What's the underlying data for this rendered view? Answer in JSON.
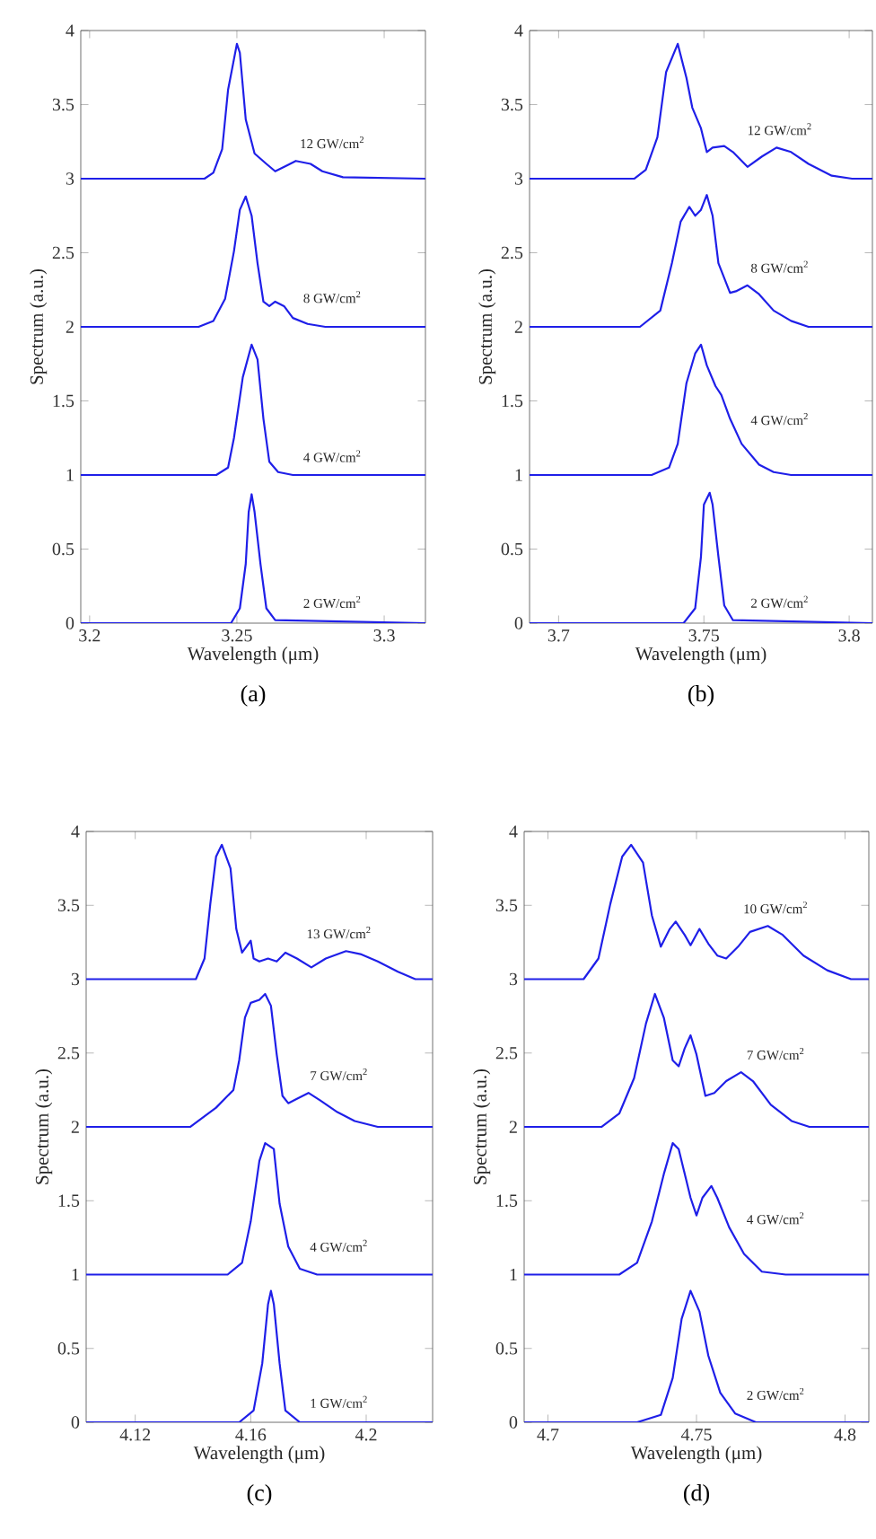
{
  "chart_data": [
    {
      "type": "line",
      "title": "(a)",
      "xlabel": "Wavelength (μm)",
      "ylabel": "Spectrum (a.u.)",
      "xlim": [
        3.197,
        3.314
      ],
      "ylim": [
        0,
        4
      ],
      "xticks": [
        3.2,
        3.25,
        3.3
      ],
      "yticks": [
        0,
        0.5,
        1,
        1.5,
        2,
        2.5,
        3,
        3.5,
        4
      ],
      "series": [
        {
          "name": "12 GW/cm$^{2}$",
          "color": "#1f1fe8",
          "x": [
            3.197,
            3.239,
            3.242,
            3.245,
            3.247,
            3.25,
            3.251,
            3.253,
            3.256,
            3.26,
            3.263,
            3.267,
            3.27,
            3.275,
            3.279,
            3.286,
            3.314
          ],
          "values": [
            3.0,
            3.0,
            3.04,
            3.2,
            3.6,
            3.91,
            3.85,
            3.4,
            3.17,
            3.1,
            3.05,
            3.09,
            3.12,
            3.1,
            3.05,
            3.01,
            3.0
          ]
        },
        {
          "name": "8 GW/cm$^{2}$",
          "color": "#1f1fe8",
          "x": [
            3.197,
            3.237,
            3.242,
            3.246,
            3.249,
            3.251,
            3.253,
            3.255,
            3.257,
            3.259,
            3.261,
            3.263,
            3.266,
            3.269,
            3.274,
            3.28,
            3.314
          ],
          "values": [
            2.0,
            2.0,
            2.04,
            2.19,
            2.51,
            2.79,
            2.88,
            2.75,
            2.43,
            2.17,
            2.14,
            2.17,
            2.14,
            2.06,
            2.02,
            2.0,
            2.0
          ]
        },
        {
          "name": "4 GW/cm$^{2}$",
          "color": "#1f1fe8",
          "x": [
            3.197,
            3.243,
            3.247,
            3.249,
            3.252,
            3.255,
            3.257,
            3.259,
            3.261,
            3.264,
            3.269,
            3.314
          ],
          "values": [
            1.0,
            1.0,
            1.05,
            1.25,
            1.66,
            1.88,
            1.78,
            1.38,
            1.09,
            1.02,
            1.0,
            1.0
          ]
        },
        {
          "name": "2 GW/cm$^{2}$",
          "color": "#1f1fe8",
          "x": [
            3.197,
            3.248,
            3.251,
            3.253,
            3.254,
            3.255,
            3.256,
            3.258,
            3.26,
            3.263,
            3.314
          ],
          "values": [
            0,
            0,
            0.1,
            0.4,
            0.75,
            0.87,
            0.75,
            0.4,
            0.1,
            0.02,
            0
          ]
        }
      ]
    },
    {
      "type": "line",
      "title": "(b)",
      "xlabel": "Wavelength (μm)",
      "ylabel": "Spectrum (a.u.)",
      "xlim": [
        3.69,
        3.808
      ],
      "ylim": [
        0,
        4
      ],
      "xticks": [
        3.7,
        3.75,
        3.8
      ],
      "yticks": [
        0,
        0.5,
        1,
        1.5,
        2,
        2.5,
        3,
        3.5,
        4
      ],
      "series": [
        {
          "name": "12 GW/cm$^{2}$",
          "color": "#1f1fe8",
          "x": [
            3.69,
            3.726,
            3.73,
            3.734,
            3.737,
            3.741,
            3.744,
            3.746,
            3.749,
            3.751,
            3.753,
            3.757,
            3.76,
            3.765,
            3.77,
            3.775,
            3.78,
            3.786,
            3.794,
            3.801,
            3.808
          ],
          "values": [
            3.0,
            3.0,
            3.06,
            3.28,
            3.72,
            3.91,
            3.68,
            3.48,
            3.34,
            3.18,
            3.21,
            3.22,
            3.18,
            3.08,
            3.15,
            3.21,
            3.18,
            3.1,
            3.02,
            3.0,
            3.0
          ]
        },
        {
          "name": "8 GW/cm$^{2}$",
          "color": "#1f1fe8",
          "x": [
            3.69,
            3.728,
            3.735,
            3.739,
            3.742,
            3.745,
            3.747,
            3.749,
            3.751,
            3.753,
            3.755,
            3.759,
            3.761,
            3.765,
            3.769,
            3.774,
            3.78,
            3.786,
            3.808
          ],
          "values": [
            2.0,
            2.0,
            2.11,
            2.43,
            2.71,
            2.81,
            2.75,
            2.79,
            2.89,
            2.75,
            2.43,
            2.23,
            2.24,
            2.28,
            2.22,
            2.11,
            2.04,
            2.0,
            2.0
          ]
        },
        {
          "name": "4 GW/cm$^{2}$",
          "color": "#1f1fe8",
          "x": [
            3.69,
            3.732,
            3.738,
            3.741,
            3.744,
            3.747,
            3.749,
            3.751,
            3.754,
            3.756,
            3.759,
            3.763,
            3.769,
            3.774,
            3.78,
            3.808
          ],
          "values": [
            1.0,
            1.0,
            1.05,
            1.21,
            1.62,
            1.82,
            1.88,
            1.74,
            1.6,
            1.54,
            1.38,
            1.21,
            1.07,
            1.02,
            1.0,
            1.0
          ]
        },
        {
          "name": "2 GW/cm$^{2}$",
          "color": "#1f1fe8",
          "x": [
            3.69,
            3.743,
            3.747,
            3.749,
            3.75,
            3.752,
            3.753,
            3.755,
            3.757,
            3.76,
            3.808
          ],
          "values": [
            0,
            0,
            0.1,
            0.45,
            0.8,
            0.88,
            0.8,
            0.45,
            0.12,
            0.02,
            0
          ]
        }
      ]
    },
    {
      "type": "line",
      "title": "(c)",
      "xlabel": "Wavelength (μm)",
      "ylabel": "Spectrum (a.u.)",
      "xlim": [
        4.103,
        4.223
      ],
      "ylim": [
        0,
        4
      ],
      "xticks": [
        4.12,
        4.16,
        4.2
      ],
      "yticks": [
        0,
        0.5,
        1,
        1.5,
        2,
        2.5,
        3,
        3.5,
        4
      ],
      "series": [
        {
          "name": "13 GW/cm$^{2}$",
          "color": "#1f1fe8",
          "x": [
            4.103,
            4.141,
            4.144,
            4.146,
            4.148,
            4.15,
            4.153,
            4.155,
            4.157,
            4.16,
            4.161,
            4.163,
            4.166,
            4.169,
            4.172,
            4.176,
            4.181,
            4.186,
            4.193,
            4.198,
            4.204,
            4.211,
            4.217,
            4.223
          ],
          "values": [
            3.0,
            3.0,
            3.14,
            3.51,
            3.83,
            3.91,
            3.75,
            3.34,
            3.18,
            3.26,
            3.14,
            3.12,
            3.14,
            3.12,
            3.18,
            3.14,
            3.08,
            3.14,
            3.19,
            3.17,
            3.12,
            3.05,
            3.0,
            3.0
          ]
        },
        {
          "name": "7 GW/cm$^{2}$",
          "color": "#1f1fe8",
          "x": [
            4.103,
            4.139,
            4.148,
            4.154,
            4.156,
            4.158,
            4.16,
            4.163,
            4.165,
            4.167,
            4.169,
            4.171,
            4.173,
            4.176,
            4.18,
            4.184,
            4.19,
            4.196,
            4.204,
            4.223
          ],
          "values": [
            2.0,
            2.0,
            2.13,
            2.25,
            2.45,
            2.74,
            2.84,
            2.86,
            2.9,
            2.82,
            2.49,
            2.21,
            2.16,
            2.19,
            2.23,
            2.18,
            2.1,
            2.04,
            2.0,
            2.0
          ]
        },
        {
          "name": "4 GW/cm$^{2}$",
          "color": "#1f1fe8",
          "x": [
            4.103,
            4.152,
            4.157,
            4.16,
            4.163,
            4.165,
            4.168,
            4.17,
            4.173,
            4.177,
            4.183,
            4.223
          ],
          "values": [
            1.0,
            1.0,
            1.08,
            1.36,
            1.77,
            1.89,
            1.85,
            1.48,
            1.19,
            1.04,
            1.0,
            1.0
          ]
        },
        {
          "name": "1 GW/cm$^{2}$",
          "color": "#1f1fe8",
          "x": [
            4.103,
            4.156,
            4.161,
            4.164,
            4.166,
            4.167,
            4.168,
            4.17,
            4.172,
            4.177,
            4.223
          ],
          "values": [
            0,
            0,
            0.08,
            0.4,
            0.8,
            0.89,
            0.8,
            0.4,
            0.08,
            0,
            0
          ]
        }
      ]
    },
    {
      "type": "line",
      "title": "(d)",
      "xlabel": "Wavelength (μm)",
      "ylabel": "Spectrum (a.u.)",
      "xlim": [
        4.692,
        4.808
      ],
      "ylim": [
        0,
        4
      ],
      "xticks": [
        4.7,
        4.75,
        4.8
      ],
      "yticks": [
        0,
        0.5,
        1,
        1.5,
        2,
        2.5,
        3,
        3.5,
        4
      ],
      "series": [
        {
          "name": "10 GW/cm$^{2}$",
          "color": "#1f1fe8",
          "x": [
            4.692,
            4.712,
            4.717,
            4.721,
            4.725,
            4.728,
            4.732,
            4.735,
            4.738,
            4.741,
            4.743,
            4.746,
            4.748,
            4.751,
            4.754,
            4.757,
            4.76,
            4.764,
            4.768,
            4.774,
            4.779,
            4.786,
            4.794,
            4.802,
            4.808
          ],
          "values": [
            3.0,
            3.0,
            3.14,
            3.51,
            3.83,
            3.91,
            3.79,
            3.43,
            3.22,
            3.34,
            3.39,
            3.3,
            3.23,
            3.34,
            3.24,
            3.16,
            3.14,
            3.22,
            3.32,
            3.36,
            3.3,
            3.16,
            3.06,
            3.0,
            3.0
          ]
        },
        {
          "name": "7 GW/cm$^{2}$",
          "color": "#1f1fe8",
          "x": [
            4.692,
            4.718,
            4.724,
            4.729,
            4.733,
            4.736,
            4.739,
            4.742,
            4.744,
            4.746,
            4.748,
            4.75,
            4.753,
            4.756,
            4.76,
            4.765,
            4.769,
            4.775,
            4.782,
            4.788,
            4.808
          ],
          "values": [
            2.0,
            2.0,
            2.09,
            2.33,
            2.7,
            2.9,
            2.74,
            2.45,
            2.41,
            2.53,
            2.62,
            2.49,
            2.21,
            2.23,
            2.31,
            2.37,
            2.31,
            2.15,
            2.04,
            2.0,
            2.0
          ]
        },
        {
          "name": "4 GW/cm$^{2}$",
          "color": "#1f1fe8",
          "x": [
            4.692,
            4.724,
            4.73,
            4.735,
            4.739,
            4.742,
            4.744,
            4.748,
            4.75,
            4.752,
            4.755,
            4.757,
            4.761,
            4.766,
            4.772,
            4.78,
            4.808
          ],
          "values": [
            1.0,
            1.0,
            1.08,
            1.36,
            1.68,
            1.89,
            1.85,
            1.52,
            1.4,
            1.52,
            1.6,
            1.52,
            1.32,
            1.14,
            1.02,
            1.0,
            1.0
          ]
        },
        {
          "name": "2 GW/cm$^{2}$",
          "color": "#1f1fe8",
          "x": [
            4.692,
            4.73,
            4.738,
            4.742,
            4.745,
            4.748,
            4.751,
            4.754,
            4.758,
            4.763,
            4.77,
            4.808
          ],
          "values": [
            0,
            0,
            0.05,
            0.3,
            0.7,
            0.89,
            0.75,
            0.45,
            0.2,
            0.06,
            0,
            0
          ]
        }
      ]
    }
  ]
}
